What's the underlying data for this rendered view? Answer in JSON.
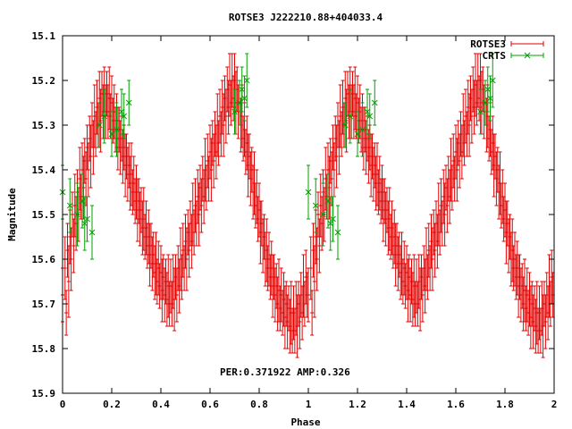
{
  "chart_data": {
    "type": "scatter",
    "title": "ROTSE3 J222210.88+404033.4",
    "xlabel": "Phase",
    "ylabel": "Magnitude",
    "xlim": [
      0,
      2
    ],
    "ylim": [
      15.1,
      15.9
    ],
    "y_inverted": true,
    "x_ticks": [
      "0",
      "0.2",
      "0.4",
      "0.6",
      "0.8",
      "1",
      "1.2",
      "1.4",
      "1.6",
      "1.8",
      "2"
    ],
    "y_ticks": [
      "15.1",
      "15.2",
      "15.3",
      "15.4",
      "15.5",
      "15.6",
      "15.7",
      "15.8",
      "15.9"
    ],
    "annotation": "PER:0.371922  AMP:0.326",
    "legend_position": "top-right",
    "grid": false,
    "series": [
      {
        "name": "ROTSE3",
        "color": "#e00000",
        "marker": "errorbar-plus",
        "phase_points": [
          [
            0.0,
            15.68,
            0.06
          ],
          [
            0.01,
            15.62,
            0.07
          ],
          [
            0.015,
            15.72,
            0.05
          ],
          [
            0.02,
            15.58,
            0.06
          ],
          [
            0.025,
            15.65,
            0.08
          ],
          [
            0.03,
            15.55,
            0.06
          ],
          [
            0.035,
            15.6,
            0.07
          ],
          [
            0.04,
            15.5,
            0.05
          ],
          [
            0.045,
            15.57,
            0.06
          ],
          [
            0.05,
            15.48,
            0.07
          ],
          [
            0.055,
            15.52,
            0.06
          ],
          [
            0.06,
            15.45,
            0.05
          ],
          [
            0.065,
            15.5,
            0.06
          ],
          [
            0.07,
            15.42,
            0.07
          ],
          [
            0.075,
            15.46,
            0.05
          ],
          [
            0.08,
            15.4,
            0.06
          ],
          [
            0.085,
            15.44,
            0.07
          ],
          [
            0.09,
            15.38,
            0.05
          ],
          [
            0.095,
            15.42,
            0.06
          ],
          [
            0.1,
            15.35,
            0.05
          ],
          [
            0.105,
            15.4,
            0.06
          ],
          [
            0.11,
            15.33,
            0.05
          ],
          [
            0.115,
            15.37,
            0.07
          ],
          [
            0.12,
            15.3,
            0.05
          ],
          [
            0.125,
            15.35,
            0.06
          ],
          [
            0.13,
            15.28,
            0.07
          ],
          [
            0.135,
            15.32,
            0.05
          ],
          [
            0.14,
            15.26,
            0.06
          ],
          [
            0.145,
            15.3,
            0.05
          ],
          [
            0.15,
            15.24,
            0.06
          ],
          [
            0.155,
            15.29,
            0.07
          ],
          [
            0.16,
            15.23,
            0.05
          ],
          [
            0.165,
            15.27,
            0.06
          ],
          [
            0.17,
            15.22,
            0.05
          ],
          [
            0.175,
            15.27,
            0.06
          ],
          [
            0.18,
            15.23,
            0.05
          ],
          [
            0.185,
            15.27,
            0.06
          ],
          [
            0.19,
            15.24,
            0.07
          ],
          [
            0.195,
            15.28,
            0.05
          ],
          [
            0.2,
            15.25,
            0.06
          ],
          [
            0.205,
            15.29,
            0.05
          ],
          [
            0.21,
            15.27,
            0.06
          ],
          [
            0.215,
            15.31,
            0.05
          ],
          [
            0.22,
            15.29,
            0.06
          ],
          [
            0.225,
            15.33,
            0.07
          ],
          [
            0.23,
            15.31,
            0.05
          ],
          [
            0.235,
            15.35,
            0.06
          ],
          [
            0.24,
            15.33,
            0.05
          ],
          [
            0.245,
            15.37,
            0.06
          ],
          [
            0.25,
            15.35,
            0.05
          ],
          [
            0.255,
            15.39,
            0.07
          ],
          [
            0.26,
            15.37,
            0.05
          ],
          [
            0.265,
            15.41,
            0.06
          ],
          [
            0.27,
            15.39,
            0.05
          ],
          [
            0.275,
            15.43,
            0.06
          ],
          [
            0.28,
            15.41,
            0.07
          ],
          [
            0.285,
            15.45,
            0.05
          ],
          [
            0.29,
            15.43,
            0.06
          ],
          [
            0.295,
            15.47,
            0.05
          ],
          [
            0.3,
            15.45,
            0.06
          ],
          [
            0.305,
            15.49,
            0.07
          ],
          [
            0.31,
            15.47,
            0.05
          ],
          [
            0.315,
            15.51,
            0.06
          ],
          [
            0.32,
            15.49,
            0.05
          ],
          [
            0.325,
            15.53,
            0.06
          ],
          [
            0.33,
            15.51,
            0.07
          ],
          [
            0.335,
            15.55,
            0.05
          ],
          [
            0.34,
            15.53,
            0.06
          ],
          [
            0.345,
            15.57,
            0.05
          ],
          [
            0.35,
            15.55,
            0.06
          ],
          [
            0.355,
            15.59,
            0.07
          ],
          [
            0.36,
            15.57,
            0.05
          ],
          [
            0.365,
            15.61,
            0.06
          ],
          [
            0.37,
            15.59,
            0.05
          ],
          [
            0.375,
            15.63,
            0.06
          ],
          [
            0.38,
            15.61,
            0.07
          ],
          [
            0.385,
            15.65,
            0.05
          ],
          [
            0.39,
            15.62,
            0.06
          ],
          [
            0.395,
            15.66,
            0.05
          ],
          [
            0.4,
            15.63,
            0.06
          ],
          [
            0.405,
            15.67,
            0.07
          ],
          [
            0.41,
            15.64,
            0.05
          ],
          [
            0.415,
            15.68,
            0.06
          ],
          [
            0.42,
            15.65,
            0.05
          ],
          [
            0.425,
            15.69,
            0.06
          ],
          [
            0.43,
            15.66,
            0.07
          ],
          [
            0.435,
            15.7,
            0.05
          ],
          [
            0.44,
            15.66,
            0.06
          ],
          [
            0.445,
            15.7,
            0.05
          ],
          [
            0.45,
            15.65,
            0.06
          ],
          [
            0.455,
            15.69,
            0.07
          ],
          [
            0.46,
            15.64,
            0.05
          ],
          [
            0.465,
            15.68,
            0.06
          ],
          [
            0.47,
            15.62,
            0.05
          ],
          [
            0.475,
            15.66,
            0.06
          ],
          [
            0.48,
            15.6,
            0.07
          ],
          [
            0.485,
            15.64,
            0.05
          ],
          [
            0.49,
            15.58,
            0.06
          ],
          [
            0.495,
            15.62,
            0.05
          ],
          [
            0.5,
            15.56,
            0.06
          ],
          [
            0.505,
            15.6,
            0.07
          ],
          [
            0.51,
            15.54,
            0.05
          ],
          [
            0.515,
            15.58,
            0.06
          ],
          [
            0.52,
            15.52,
            0.05
          ],
          [
            0.525,
            15.56,
            0.06
          ],
          [
            0.53,
            15.5,
            0.07
          ],
          [
            0.535,
            15.54,
            0.05
          ],
          [
            0.54,
            15.48,
            0.06
          ],
          [
            0.545,
            15.52,
            0.05
          ],
          [
            0.55,
            15.46,
            0.06
          ],
          [
            0.555,
            15.5,
            0.07
          ],
          [
            0.56,
            15.44,
            0.05
          ],
          [
            0.565,
            15.48,
            0.06
          ],
          [
            0.57,
            15.42,
            0.05
          ],
          [
            0.575,
            15.46,
            0.06
          ],
          [
            0.58,
            15.4,
            0.07
          ],
          [
            0.585,
            15.44,
            0.05
          ],
          [
            0.59,
            15.38,
            0.06
          ],
          [
            0.595,
            15.42,
            0.05
          ],
          [
            0.6,
            15.36,
            0.06
          ],
          [
            0.605,
            15.4,
            0.07
          ],
          [
            0.61,
            15.34,
            0.05
          ],
          [
            0.615,
            15.38,
            0.06
          ],
          [
            0.62,
            15.32,
            0.05
          ],
          [
            0.625,
            15.36,
            0.06
          ],
          [
            0.63,
            15.3,
            0.07
          ],
          [
            0.635,
            15.34,
            0.05
          ],
          [
            0.64,
            15.28,
            0.06
          ],
          [
            0.645,
            15.32,
            0.05
          ],
          [
            0.65,
            15.26,
            0.06
          ],
          [
            0.655,
            15.3,
            0.07
          ],
          [
            0.66,
            15.24,
            0.05
          ],
          [
            0.665,
            15.28,
            0.06
          ],
          [
            0.67,
            15.22,
            0.05
          ],
          [
            0.675,
            15.26,
            0.06
          ],
          [
            0.68,
            15.21,
            0.07
          ],
          [
            0.685,
            15.25,
            0.05
          ],
          [
            0.69,
            15.2,
            0.06
          ],
          [
            0.695,
            15.24,
            0.05
          ],
          [
            0.7,
            15.2,
            0.06
          ],
          [
            0.705,
            15.25,
            0.07
          ],
          [
            0.71,
            15.22,
            0.05
          ],
          [
            0.715,
            15.27,
            0.06
          ],
          [
            0.72,
            15.25,
            0.05
          ],
          [
            0.725,
            15.3,
            0.06
          ],
          [
            0.73,
            15.28,
            0.07
          ],
          [
            0.735,
            15.33,
            0.05
          ],
          [
            0.74,
            15.31,
            0.06
          ],
          [
            0.745,
            15.36,
            0.05
          ],
          [
            0.75,
            15.34,
            0.06
          ],
          [
            0.755,
            15.39,
            0.07
          ],
          [
            0.76,
            15.37,
            0.05
          ],
          [
            0.765,
            15.42,
            0.06
          ],
          [
            0.77,
            15.4,
            0.05
          ],
          [
            0.775,
            15.45,
            0.06
          ],
          [
            0.78,
            15.43,
            0.07
          ],
          [
            0.785,
            15.48,
            0.05
          ],
          [
            0.79,
            15.46,
            0.06
          ],
          [
            0.795,
            15.51,
            0.05
          ],
          [
            0.8,
            15.49,
            0.06
          ],
          [
            0.805,
            15.54,
            0.07
          ],
          [
            0.81,
            15.52,
            0.05
          ],
          [
            0.815,
            15.57,
            0.06
          ],
          [
            0.82,
            15.55,
            0.05
          ],
          [
            0.825,
            15.6,
            0.06
          ],
          [
            0.83,
            15.58,
            0.07
          ],
          [
            0.835,
            15.62,
            0.05
          ],
          [
            0.84,
            15.6,
            0.06
          ],
          [
            0.845,
            15.64,
            0.05
          ],
          [
            0.85,
            15.62,
            0.06
          ],
          [
            0.855,
            15.66,
            0.07
          ],
          [
            0.86,
            15.64,
            0.05
          ],
          [
            0.865,
            15.68,
            0.06
          ],
          [
            0.87,
            15.66,
            0.05
          ],
          [
            0.875,
            15.7,
            0.06
          ],
          [
            0.88,
            15.67,
            0.07
          ],
          [
            0.885,
            15.71,
            0.05
          ],
          [
            0.89,
            15.68,
            0.06
          ],
          [
            0.895,
            15.72,
            0.05
          ],
          [
            0.9,
            15.69,
            0.06
          ],
          [
            0.905,
            15.73,
            0.07
          ],
          [
            0.91,
            15.7,
            0.05
          ],
          [
            0.915,
            15.74,
            0.06
          ],
          [
            0.92,
            15.71,
            0.05
          ],
          [
            0.925,
            15.75,
            0.06
          ],
          [
            0.93,
            15.72,
            0.07
          ],
          [
            0.935,
            15.76,
            0.05
          ],
          [
            0.94,
            15.72,
            0.06
          ],
          [
            0.945,
            15.76,
            0.05
          ],
          [
            0.95,
            15.71,
            0.06
          ],
          [
            0.955,
            15.75,
            0.07
          ],
          [
            0.96,
            15.7,
            0.05
          ],
          [
            0.965,
            15.74,
            0.06
          ],
          [
            0.97,
            15.68,
            0.05
          ],
          [
            0.975,
            15.72,
            0.06
          ],
          [
            0.98,
            15.66,
            0.07
          ],
          [
            0.985,
            15.7,
            0.05
          ],
          [
            0.99,
            15.64,
            0.06
          ],
          [
            0.995,
            15.68,
            0.05
          ]
        ]
      },
      {
        "name": "CRTS",
        "color": "#00a000",
        "marker": "errorbar-x",
        "phase_points": [
          [
            0.0,
            15.45,
            0.06
          ],
          [
            0.03,
            15.48,
            0.06
          ],
          [
            0.06,
            15.5,
            0.07
          ],
          [
            0.08,
            15.47,
            0.06
          ],
          [
            0.09,
            15.52,
            0.06
          ],
          [
            0.1,
            15.51,
            0.05
          ],
          [
            0.12,
            15.54,
            0.06
          ],
          [
            0.15,
            15.3,
            0.05
          ],
          [
            0.17,
            15.28,
            0.06
          ],
          [
            0.2,
            15.32,
            0.05
          ],
          [
            0.22,
            15.31,
            0.06
          ],
          [
            0.24,
            15.27,
            0.05
          ],
          [
            0.25,
            15.28,
            0.05
          ],
          [
            0.27,
            15.25,
            0.05
          ],
          [
            0.7,
            15.27,
            0.05
          ],
          [
            0.72,
            15.25,
            0.05
          ],
          [
            0.73,
            15.22,
            0.05
          ],
          [
            0.74,
            15.24,
            0.05
          ],
          [
            0.75,
            15.2,
            0.06
          ]
        ]
      }
    ]
  }
}
